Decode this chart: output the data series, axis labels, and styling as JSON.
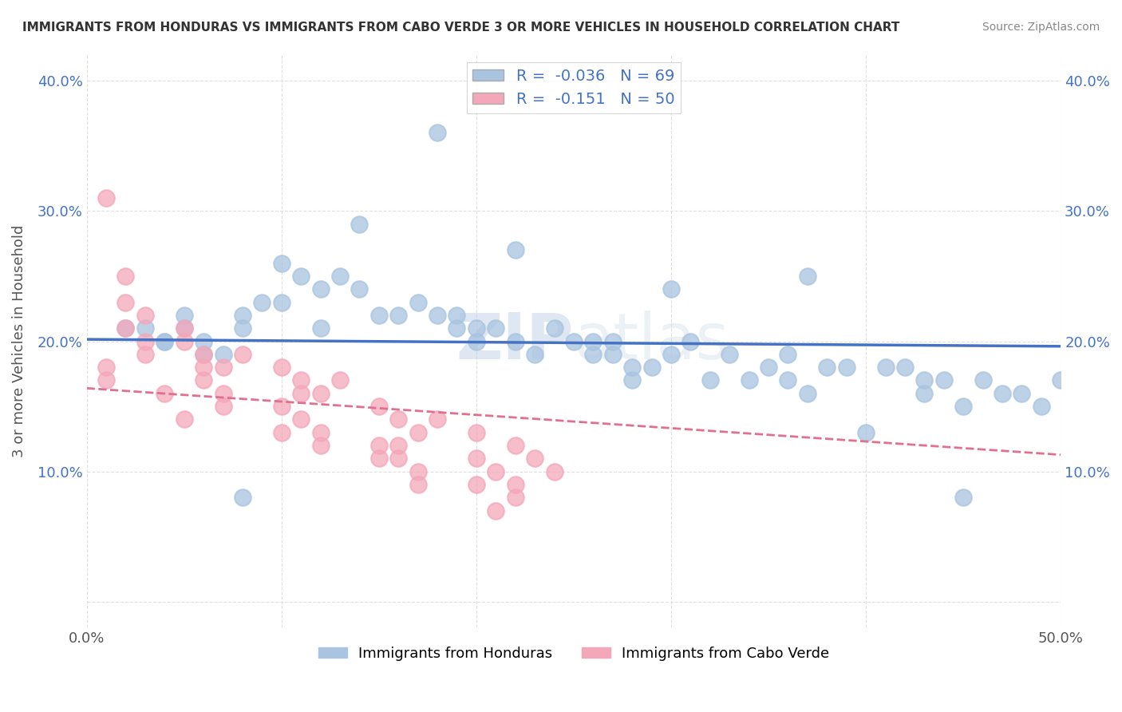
{
  "title": "IMMIGRANTS FROM HONDURAS VS IMMIGRANTS FROM CABO VERDE 3 OR MORE VEHICLES IN HOUSEHOLD CORRELATION CHART",
  "source": "Source: ZipAtlas.com",
  "ylabel": "3 or more Vehicles in Household",
  "xlim": [
    0.0,
    0.5
  ],
  "ylim": [
    -0.02,
    0.42
  ],
  "honduras_color": "#a8c4e0",
  "cabo_verde_color": "#f4a7b9",
  "honduras_line_color": "#4472c4",
  "cabo_verde_line_color": "#e07090",
  "honduras_R": -0.036,
  "honduras_N": 69,
  "cabo_verde_R": -0.151,
  "cabo_verde_N": 50,
  "background_color": "#ffffff",
  "grid_color": "#dddddd",
  "watermark_zip": "ZIP",
  "watermark_atlas": "atlas",
  "legend_color": "#4472c4",
  "honduras_scatter_x": [
    0.02,
    0.04,
    0.05,
    0.06,
    0.03,
    0.07,
    0.08,
    0.04,
    0.05,
    0.06,
    0.1,
    0.11,
    0.12,
    0.13,
    0.09,
    0.14,
    0.15,
    0.1,
    0.12,
    0.08,
    0.18,
    0.2,
    0.22,
    0.19,
    0.17,
    0.21,
    0.16,
    0.2,
    0.23,
    0.19,
    0.25,
    0.27,
    0.28,
    0.26,
    0.24,
    0.3,
    0.29,
    0.27,
    0.28,
    0.26,
    0.33,
    0.35,
    0.32,
    0.36,
    0.38,
    0.34,
    0.31,
    0.37,
    0.39,
    0.36,
    0.42,
    0.44,
    0.43,
    0.41,
    0.46,
    0.48,
    0.45,
    0.43,
    0.47,
    0.49,
    0.14,
    0.22,
    0.08,
    0.3,
    0.37,
    0.45,
    0.5,
    0.18,
    0.4
  ],
  "honduras_scatter_y": [
    0.21,
    0.2,
    0.22,
    0.2,
    0.21,
    0.19,
    0.21,
    0.2,
    0.21,
    0.19,
    0.26,
    0.25,
    0.24,
    0.25,
    0.23,
    0.24,
    0.22,
    0.23,
    0.21,
    0.22,
    0.22,
    0.21,
    0.2,
    0.22,
    0.23,
    0.21,
    0.22,
    0.2,
    0.19,
    0.21,
    0.2,
    0.19,
    0.18,
    0.2,
    0.21,
    0.19,
    0.18,
    0.2,
    0.17,
    0.19,
    0.19,
    0.18,
    0.17,
    0.19,
    0.18,
    0.17,
    0.2,
    0.16,
    0.18,
    0.17,
    0.18,
    0.17,
    0.16,
    0.18,
    0.17,
    0.16,
    0.15,
    0.17,
    0.16,
    0.15,
    0.29,
    0.27,
    0.08,
    0.24,
    0.25,
    0.08,
    0.17,
    0.36,
    0.13
  ],
  "cabo_verde_scatter_x": [
    0.01,
    0.02,
    0.03,
    0.01,
    0.02,
    0.03,
    0.04,
    0.02,
    0.03,
    0.01,
    0.05,
    0.06,
    0.07,
    0.05,
    0.06,
    0.07,
    0.08,
    0.06,
    0.07,
    0.05,
    0.1,
    0.11,
    0.12,
    0.1,
    0.11,
    0.12,
    0.13,
    0.11,
    0.12,
    0.1,
    0.15,
    0.16,
    0.17,
    0.15,
    0.16,
    0.17,
    0.18,
    0.16,
    0.17,
    0.15,
    0.2,
    0.22,
    0.21,
    0.2,
    0.22,
    0.23,
    0.24,
    0.21,
    0.22,
    0.2
  ],
  "cabo_verde_scatter_y": [
    0.31,
    0.21,
    0.19,
    0.17,
    0.25,
    0.22,
    0.16,
    0.23,
    0.2,
    0.18,
    0.21,
    0.19,
    0.18,
    0.2,
    0.17,
    0.16,
    0.19,
    0.18,
    0.15,
    0.14,
    0.18,
    0.17,
    0.16,
    0.15,
    0.14,
    0.13,
    0.17,
    0.16,
    0.12,
    0.13,
    0.15,
    0.14,
    0.13,
    0.11,
    0.12,
    0.1,
    0.14,
    0.11,
    0.09,
    0.12,
    0.13,
    0.12,
    0.1,
    0.09,
    0.08,
    0.11,
    0.1,
    0.07,
    0.09,
    0.11
  ]
}
